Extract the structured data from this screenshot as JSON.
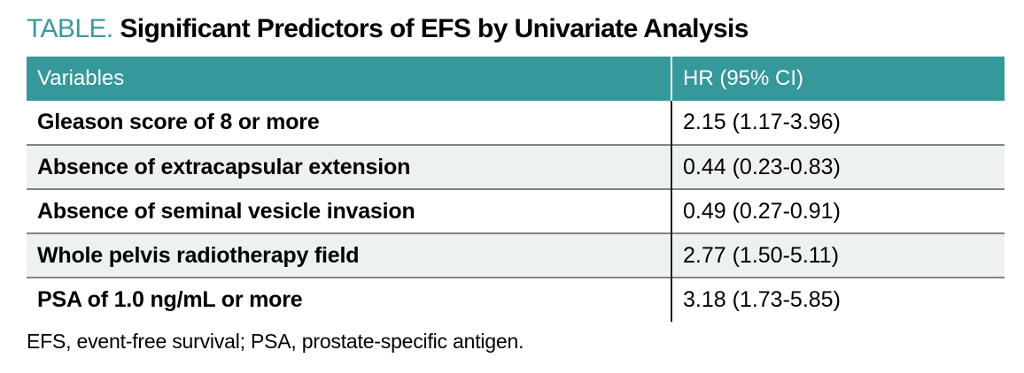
{
  "title": {
    "label": "TABLE.",
    "text": "Significant Predictors of EFS by Univariate Analysis"
  },
  "table": {
    "columns": [
      "Variables",
      "HR (95% CI)"
    ],
    "rows": [
      {
        "variable": "Gleason score of 8 or more",
        "hr": "2.15 (1.17-3.96)"
      },
      {
        "variable": "Absence of extracapsular extension",
        "hr": "0.44 (0.23-0.83)"
      },
      {
        "variable": "Absence of seminal vesicle invasion",
        "hr": "0.49 (0.27-0.91)"
      },
      {
        "variable": "Whole pelvis radiotherapy field",
        "hr": "2.77 (1.50-5.11)"
      },
      {
        "variable": "PSA of 1.0 ng/mL or more",
        "hr": "3.18 (1.73-5.85)"
      }
    ]
  },
  "footnote": "EFS, event-free survival; PSA, prostate-specific antigen.",
  "colors": {
    "accent_teal": "#35989a",
    "title_label_teal": "#3a9a9c",
    "row_alt_background": "#eef1f1",
    "row_border_gray": "#7d8484",
    "column_divider_black": "#1e1e1e",
    "header_text": "#ffffff",
    "body_text": "#000000"
  }
}
